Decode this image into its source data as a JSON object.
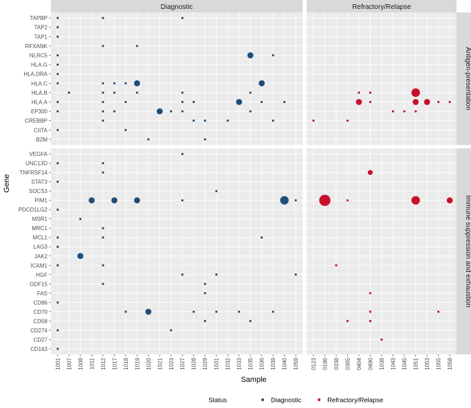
{
  "chart_data": {
    "type": "scatter",
    "xlabel": "Sample",
    "ylabel": "Gene",
    "grid": true,
    "legend_position": "bottom",
    "legend": {
      "title": "Status",
      "entries": [
        {
          "name": "Diagnostic",
          "color": "#1f4e79"
        },
        {
          "name": "Refractory/Relapse",
          "color": "#c8102e"
        }
      ]
    },
    "col_facets": [
      "Diagnostic",
      "Refractory/Relapse"
    ],
    "row_facets": [
      "Antigen-presentation",
      "Immune suppression and exhaustion"
    ],
    "x_categories": {
      "Diagnostic": [
        "1001",
        "1007",
        "1008",
        "1011",
        "1012",
        "1017",
        "1018",
        "1019",
        "1020",
        "1021",
        "1023",
        "1027",
        "1028",
        "1029",
        "1031",
        "1032",
        "1033",
        "1035",
        "1036",
        "1039",
        "1040",
        "1059"
      ],
      "Refractory/Relapse": [
        "0123",
        "0196",
        "0338",
        "0365",
        "0404",
        "0490",
        "1038",
        "1043",
        "1045",
        "1051",
        "1053",
        "1055",
        "1058"
      ]
    },
    "y_categories": {
      "Antigen-presentation": [
        "TAPBP",
        "TAP2",
        "TAP1",
        "RFXANK",
        "NLRC5",
        "HLA.G",
        "HLA.DRA",
        "HLA.C",
        "HLA.B",
        "HLA.A",
        "EP300",
        "CREBBP",
        "CIITA",
        "B2M"
      ],
      "Immune suppression and exhaustion": [
        "VEGFA",
        "UNC13D",
        "TNFRSF14",
        "STAT3",
        "SOCS3",
        "PIM1",
        "PDCD1LG2",
        "MSR1",
        "MRC1",
        "MCL1",
        "LAG3",
        "JAK2",
        "ICAM1",
        "HGF",
        "GDF15",
        "FAS",
        "CD86",
        "CD70",
        "CD58",
        "CD274",
        "CD27",
        "CD163"
      ]
    },
    "points": [
      {
        "status": "Diagnostic",
        "sample": "1001",
        "gene": "TAPBP",
        "size": 1
      },
      {
        "status": "Diagnostic",
        "sample": "1012",
        "gene": "TAPBP",
        "size": 1
      },
      {
        "status": "Diagnostic",
        "sample": "1027",
        "gene": "TAPBP",
        "size": 1
      },
      {
        "status": "Diagnostic",
        "sample": "1001",
        "gene": "TAP2",
        "size": 1
      },
      {
        "status": "Diagnostic",
        "sample": "1001",
        "gene": "TAP1",
        "size": 1
      },
      {
        "status": "Diagnostic",
        "sample": "1012",
        "gene": "RFXANK",
        "size": 1
      },
      {
        "status": "Diagnostic",
        "sample": "1019",
        "gene": "RFXANK",
        "size": 1
      },
      {
        "status": "Diagnostic",
        "sample": "1001",
        "gene": "NLRC5",
        "size": 1
      },
      {
        "status": "Diagnostic",
        "sample": "1035",
        "gene": "NLRC5",
        "size": 3
      },
      {
        "status": "Diagnostic",
        "sample": "1039",
        "gene": "NLRC5",
        "size": 1
      },
      {
        "status": "Diagnostic",
        "sample": "1001",
        "gene": "HLA.G",
        "size": 1
      },
      {
        "status": "Diagnostic",
        "sample": "1001",
        "gene": "HLA.DRA",
        "size": 1
      },
      {
        "status": "Diagnostic",
        "sample": "1001",
        "gene": "HLA.C",
        "size": 1
      },
      {
        "status": "Diagnostic",
        "sample": "1012",
        "gene": "HLA.C",
        "size": 1
      },
      {
        "status": "Diagnostic",
        "sample": "1017",
        "gene": "HLA.C",
        "size": 1
      },
      {
        "status": "Diagnostic",
        "sample": "1018",
        "gene": "HLA.C",
        "size": 1
      },
      {
        "status": "Diagnostic",
        "sample": "1019",
        "gene": "HLA.C",
        "size": 3
      },
      {
        "status": "Diagnostic",
        "sample": "1036",
        "gene": "HLA.C",
        "size": 3
      },
      {
        "status": "Diagnostic",
        "sample": "1007",
        "gene": "HLA.B",
        "size": 1
      },
      {
        "status": "Diagnostic",
        "sample": "1012",
        "gene": "HLA.B",
        "size": 1
      },
      {
        "status": "Diagnostic",
        "sample": "1017",
        "gene": "HLA.B",
        "size": 1
      },
      {
        "status": "Diagnostic",
        "sample": "1019",
        "gene": "HLA.B",
        "size": 1
      },
      {
        "status": "Diagnostic",
        "sample": "1027",
        "gene": "HLA.B",
        "size": 1
      },
      {
        "status": "Diagnostic",
        "sample": "1035",
        "gene": "HLA.B",
        "size": 1
      },
      {
        "status": "Diagnostic",
        "sample": "1001",
        "gene": "HLA.A",
        "size": 1
      },
      {
        "status": "Diagnostic",
        "sample": "1012",
        "gene": "HLA.A",
        "size": 1
      },
      {
        "status": "Diagnostic",
        "sample": "1018",
        "gene": "HLA.A",
        "size": 1
      },
      {
        "status": "Diagnostic",
        "sample": "1027",
        "gene": "HLA.A",
        "size": 1
      },
      {
        "status": "Diagnostic",
        "sample": "1028",
        "gene": "HLA.A",
        "size": 1
      },
      {
        "status": "Diagnostic",
        "sample": "1033",
        "gene": "HLA.A",
        "size": 3
      },
      {
        "status": "Diagnostic",
        "sample": "1036",
        "gene": "HLA.A",
        "size": 1
      },
      {
        "status": "Diagnostic",
        "sample": "1040",
        "gene": "HLA.A",
        "size": 1
      },
      {
        "status": "Diagnostic",
        "sample": "1001",
        "gene": "EP300",
        "size": 1
      },
      {
        "status": "Diagnostic",
        "sample": "1012",
        "gene": "EP300",
        "size": 1
      },
      {
        "status": "Diagnostic",
        "sample": "1017",
        "gene": "EP300",
        "size": 1
      },
      {
        "status": "Diagnostic",
        "sample": "1021",
        "gene": "EP300",
        "size": 3
      },
      {
        "status": "Diagnostic",
        "sample": "1023",
        "gene": "EP300",
        "size": 1
      },
      {
        "status": "Diagnostic",
        "sample": "1027",
        "gene": "EP300",
        "size": 1
      },
      {
        "status": "Diagnostic",
        "sample": "1035",
        "gene": "EP300",
        "size": 1
      },
      {
        "status": "Diagnostic",
        "sample": "1012",
        "gene": "CREBBP",
        "size": 1
      },
      {
        "status": "Diagnostic",
        "sample": "1028",
        "gene": "CREBBP",
        "size": 1
      },
      {
        "status": "Diagnostic",
        "sample": "1029",
        "gene": "CREBBP",
        "size": 1
      },
      {
        "status": "Diagnostic",
        "sample": "1032",
        "gene": "CREBBP",
        "size": 1
      },
      {
        "status": "Diagnostic",
        "sample": "1039",
        "gene": "CREBBP",
        "size": 1
      },
      {
        "status": "Diagnostic",
        "sample": "1001",
        "gene": "CIITA",
        "size": 1
      },
      {
        "status": "Diagnostic",
        "sample": "1018",
        "gene": "CIITA",
        "size": 1
      },
      {
        "status": "Diagnostic",
        "sample": "1020",
        "gene": "B2M",
        "size": 1
      },
      {
        "status": "Diagnostic",
        "sample": "1029",
        "gene": "B2M",
        "size": 1
      },
      {
        "status": "Refractory/Relapse",
        "sample": "0404",
        "gene": "HLA.B",
        "size": 1
      },
      {
        "status": "Refractory/Relapse",
        "sample": "0490",
        "gene": "HLA.B",
        "size": 1
      },
      {
        "status": "Refractory/Relapse",
        "sample": "1051",
        "gene": "HLA.B",
        "size": 4
      },
      {
        "status": "Refractory/Relapse",
        "sample": "0404",
        "gene": "HLA.A",
        "size": 3
      },
      {
        "status": "Refractory/Relapse",
        "sample": "0490",
        "gene": "HLA.A",
        "size": 1
      },
      {
        "status": "Refractory/Relapse",
        "sample": "1051",
        "gene": "HLA.A",
        "size": 3
      },
      {
        "status": "Refractory/Relapse",
        "sample": "1053",
        "gene": "HLA.A",
        "size": 3
      },
      {
        "status": "Refractory/Relapse",
        "sample": "1055",
        "gene": "HLA.A",
        "size": 1
      },
      {
        "status": "Refractory/Relapse",
        "sample": "1058",
        "gene": "HLA.A",
        "size": 1
      },
      {
        "status": "Refractory/Relapse",
        "sample": "1043",
        "gene": "EP300",
        "size": 1
      },
      {
        "status": "Refractory/Relapse",
        "sample": "1045",
        "gene": "EP300",
        "size": 1
      },
      {
        "status": "Refractory/Relapse",
        "sample": "1051",
        "gene": "EP300",
        "size": 1
      },
      {
        "status": "Refractory/Relapse",
        "sample": "0123",
        "gene": "CREBBP",
        "size": 1
      },
      {
        "status": "Refractory/Relapse",
        "sample": "0365",
        "gene": "CREBBP",
        "size": 1
      },
      {
        "status": "Diagnostic",
        "sample": "1027",
        "gene": "VEGFA",
        "size": 1
      },
      {
        "status": "Diagnostic",
        "sample": "1001",
        "gene": "UNC13D",
        "size": 1
      },
      {
        "status": "Diagnostic",
        "sample": "1012",
        "gene": "UNC13D",
        "size": 1
      },
      {
        "status": "Diagnostic",
        "sample": "1012",
        "gene": "TNFRSF14",
        "size": 1
      },
      {
        "status": "Diagnostic",
        "sample": "1001",
        "gene": "STAT3",
        "size": 1
      },
      {
        "status": "Diagnostic",
        "sample": "1031",
        "gene": "SOCS3",
        "size": 1
      },
      {
        "status": "Diagnostic",
        "sample": "1011",
        "gene": "PIM1",
        "size": 3
      },
      {
        "status": "Diagnostic",
        "sample": "1017",
        "gene": "PIM1",
        "size": 3
      },
      {
        "status": "Diagnostic",
        "sample": "1019",
        "gene": "PIM1",
        "size": 3
      },
      {
        "status": "Diagnostic",
        "sample": "1027",
        "gene": "PIM1",
        "size": 1
      },
      {
        "status": "Diagnostic",
        "sample": "1040",
        "gene": "PIM1",
        "size": 4
      },
      {
        "status": "Diagnostic",
        "sample": "1059",
        "gene": "PIM1",
        "size": 1
      },
      {
        "status": "Diagnostic",
        "sample": "1001",
        "gene": "PDCD1LG2",
        "size": 1
      },
      {
        "status": "Diagnostic",
        "sample": "1008",
        "gene": "MSR1",
        "size": 1
      },
      {
        "status": "Diagnostic",
        "sample": "1012",
        "gene": "MRC1",
        "size": 1
      },
      {
        "status": "Diagnostic",
        "sample": "1001",
        "gene": "MCL1",
        "size": 1
      },
      {
        "status": "Diagnostic",
        "sample": "1012",
        "gene": "MCL1",
        "size": 1
      },
      {
        "status": "Diagnostic",
        "sample": "1036",
        "gene": "MCL1",
        "size": 1
      },
      {
        "status": "Diagnostic",
        "sample": "1001",
        "gene": "LAG3",
        "size": 1
      },
      {
        "status": "Diagnostic",
        "sample": "1008",
        "gene": "JAK2",
        "size": 3
      },
      {
        "status": "Diagnostic",
        "sample": "1001",
        "gene": "ICAM1",
        "size": 1
      },
      {
        "status": "Diagnostic",
        "sample": "1012",
        "gene": "ICAM1",
        "size": 1
      },
      {
        "status": "Diagnostic",
        "sample": "1027",
        "gene": "HGF",
        "size": 1
      },
      {
        "status": "Diagnostic",
        "sample": "1031",
        "gene": "HGF",
        "size": 1
      },
      {
        "status": "Diagnostic",
        "sample": "1059",
        "gene": "HGF",
        "size": 1
      },
      {
        "status": "Diagnostic",
        "sample": "1012",
        "gene": "GDF15",
        "size": 1
      },
      {
        "status": "Diagnostic",
        "sample": "1029",
        "gene": "GDF15",
        "size": 1
      },
      {
        "status": "Diagnostic",
        "sample": "1029",
        "gene": "FAS",
        "size": 1
      },
      {
        "status": "Diagnostic",
        "sample": "1001",
        "gene": "CD86",
        "size": 1
      },
      {
        "status": "Diagnostic",
        "sample": "1018",
        "gene": "CD70",
        "size": 1
      },
      {
        "status": "Diagnostic",
        "sample": "1020",
        "gene": "CD70",
        "size": 3
      },
      {
        "status": "Diagnostic",
        "sample": "1028",
        "gene": "CD70",
        "size": 1
      },
      {
        "status": "Diagnostic",
        "sample": "1031",
        "gene": "CD70",
        "size": 1
      },
      {
        "status": "Diagnostic",
        "sample": "1033",
        "gene": "CD70",
        "size": 1
      },
      {
        "status": "Diagnostic",
        "sample": "1039",
        "gene": "CD70",
        "size": 1
      },
      {
        "status": "Diagnostic",
        "sample": "1029",
        "gene": "CD58",
        "size": 1
      },
      {
        "status": "Diagnostic",
        "sample": "1035",
        "gene": "CD58",
        "size": 1
      },
      {
        "status": "Diagnostic",
        "sample": "1001",
        "gene": "CD274",
        "size": 1
      },
      {
        "status": "Diagnostic",
        "sample": "1023",
        "gene": "CD274",
        "size": 1
      },
      {
        "status": "Diagnostic",
        "sample": "1001",
        "gene": "CD163",
        "size": 1
      },
      {
        "status": "Refractory/Relapse",
        "sample": "0490",
        "gene": "TNFRSF14",
        "size": 2
      },
      {
        "status": "Refractory/Relapse",
        "sample": "0196",
        "gene": "PIM1",
        "size": 5
      },
      {
        "status": "Refractory/Relapse",
        "sample": "0365",
        "gene": "PIM1",
        "size": 1
      },
      {
        "status": "Refractory/Relapse",
        "sample": "1051",
        "gene": "PIM1",
        "size": 4
      },
      {
        "status": "Refractory/Relapse",
        "sample": "1058",
        "gene": "PIM1",
        "size": 3
      },
      {
        "status": "Refractory/Relapse",
        "sample": "0338",
        "gene": "ICAM1",
        "size": 1
      },
      {
        "status": "Refractory/Relapse",
        "sample": "0490",
        "gene": "FAS",
        "size": 1
      },
      {
        "status": "Refractory/Relapse",
        "sample": "0490",
        "gene": "CD70",
        "size": 1
      },
      {
        "status": "Refractory/Relapse",
        "sample": "1055",
        "gene": "CD70",
        "size": 1
      },
      {
        "status": "Refractory/Relapse",
        "sample": "0365",
        "gene": "CD58",
        "size": 1
      },
      {
        "status": "Refractory/Relapse",
        "sample": "0490",
        "gene": "CD58",
        "size": 1
      },
      {
        "status": "Refractory/Relapse",
        "sample": "1038",
        "gene": "CD27",
        "size": 1
      }
    ]
  }
}
